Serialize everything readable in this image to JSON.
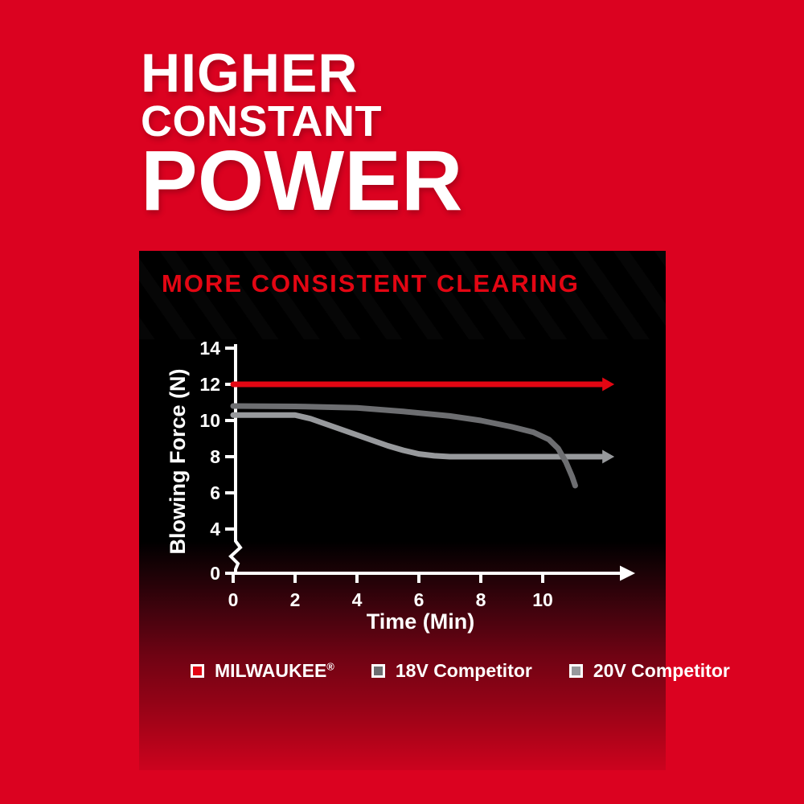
{
  "hero": {
    "line1": "HIGHER",
    "line2": "CONSTANT",
    "line3": "POWER"
  },
  "panel": {
    "title": "MORE CONSISTENT CLEARING"
  },
  "chart_data": {
    "type": "line",
    "title": "MORE CONSISTENT CLEARING",
    "xlabel": "Time (Min)",
    "ylabel": "Blowing Force (N)",
    "x_ticks": [
      0,
      2,
      4,
      6,
      8,
      10
    ],
    "y_ticks": [
      14,
      12,
      10,
      8,
      6,
      4,
      0
    ],
    "y_axis_break_between": [
      0,
      4
    ],
    "xlim": [
      0,
      12.9
    ],
    "ylim": [
      0,
      14
    ],
    "grid": false,
    "legend_position": "bottom",
    "series": [
      {
        "name": "MILWAUKEE®",
        "color": "#e30613",
        "line_end": "arrow",
        "points": [
          [
            0,
            12
          ],
          [
            11.9,
            12
          ]
        ]
      },
      {
        "name": "18V Competitor",
        "color": "#6d6e71",
        "line_end": "stop",
        "points": [
          [
            0,
            10.8
          ],
          [
            2,
            10.78
          ],
          [
            4,
            10.7
          ],
          [
            5.5,
            10.5
          ],
          [
            7,
            10.25
          ],
          [
            8,
            10.0
          ],
          [
            9,
            9.65
          ],
          [
            9.7,
            9.35
          ],
          [
            10.2,
            8.95
          ],
          [
            10.5,
            8.45
          ],
          [
            10.75,
            7.7
          ],
          [
            10.95,
            6.9
          ],
          [
            11.05,
            6.4
          ]
        ]
      },
      {
        "name": "20V Competitor",
        "color": "#97999c",
        "line_end": "arrow",
        "points": [
          [
            0,
            10.3
          ],
          [
            2,
            10.3
          ],
          [
            2.5,
            10.1
          ],
          [
            3,
            9.8
          ],
          [
            3.5,
            9.5
          ],
          [
            4,
            9.2
          ],
          [
            4.5,
            8.9
          ],
          [
            5,
            8.6
          ],
          [
            5.5,
            8.35
          ],
          [
            6,
            8.15
          ],
          [
            6.5,
            8.05
          ],
          [
            7,
            8.0
          ],
          [
            11.9,
            8.0
          ]
        ]
      }
    ]
  },
  "legend": {
    "items": [
      {
        "label": "MILWAUKEE",
        "mark": "®",
        "color": "#e30613"
      },
      {
        "label": "18V Competitor",
        "color": "#6d6e71"
      },
      {
        "label": "20V Competitor",
        "color": "#97999c"
      }
    ]
  },
  "colors": {
    "background_red": "#db0220",
    "panel_black": "#000000",
    "accent_red": "#e30613",
    "text_white": "#ffffff",
    "gray_18v": "#6d6e71",
    "gray_20v": "#97999c"
  }
}
